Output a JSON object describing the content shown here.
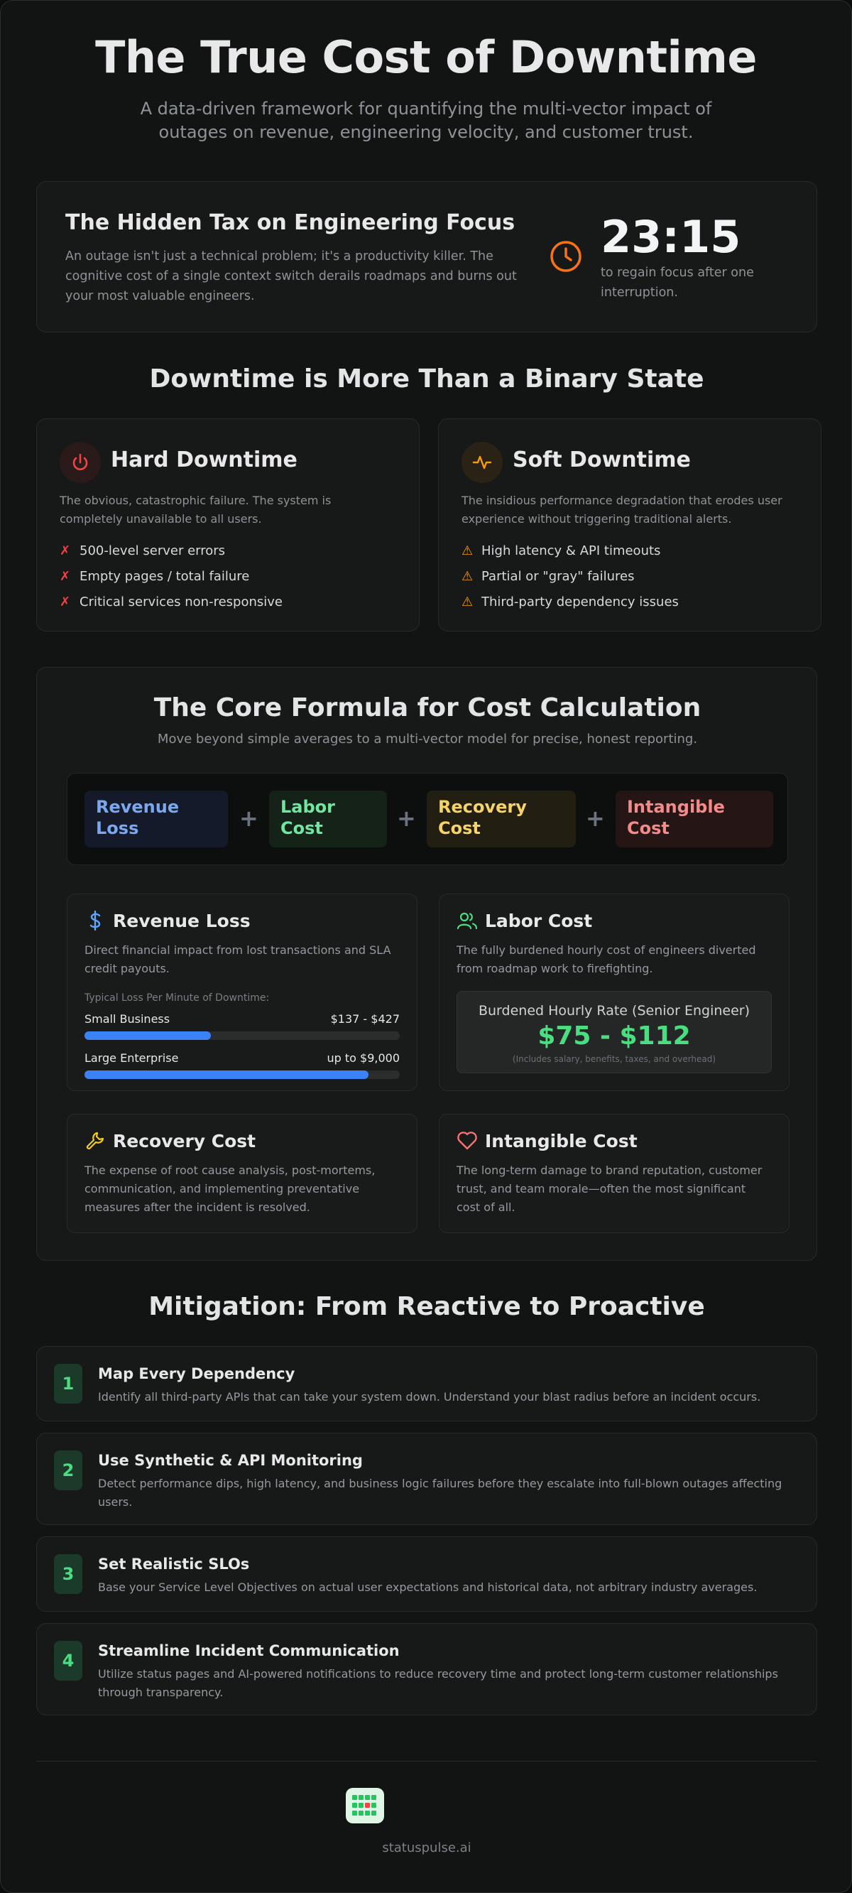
{
  "hero": {
    "title": "The True Cost of Downtime",
    "subtitle": "A data-driven framework for quantifying the multi-vector impact of outages on revenue, engineering velocity, and customer trust."
  },
  "hidden_tax": {
    "title": "The Hidden Tax on Engineering Focus",
    "description": "An outage isn't just a technical problem; it's a productivity killer. The cognitive cost of a single context switch derails roadmaps and burns out your most valuable engineers.",
    "stat_value": "23:15",
    "stat_caption": "to regain focus after one interruption.",
    "icon": "clock-icon"
  },
  "downtime_section": {
    "title": "Downtime is More Than a Binary State",
    "hard": {
      "title": "Hard Downtime",
      "icon": "power-icon",
      "description": "The obvious, catastrophic failure. The system is completely unavailable to all users.",
      "items": [
        "500-level server errors",
        "Empty pages / total failure",
        "Critical services non-responsive"
      ],
      "mark": "✗",
      "color": "#ef4444"
    },
    "soft": {
      "title": "Soft Downtime",
      "icon": "activity-icon",
      "description": "The insidious performance degradation that erodes user experience without triggering traditional alerts.",
      "items": [
        "High latency & API timeouts",
        "Partial or \"gray\" failures",
        "Third-party dependency issues"
      ],
      "mark": "⚠",
      "color": "#f59e0b"
    }
  },
  "formula": {
    "title": "The Core Formula for Cost Calculation",
    "subtitle": "Move beyond simple averages to a multi-vector model for precise, honest reporting.",
    "terms": [
      {
        "label": "Revenue Loss",
        "color": "#7aa8f0"
      },
      {
        "label": "Labor Cost",
        "color": "#6ee7a0"
      },
      {
        "label": "Recovery Cost",
        "color": "#f6d365"
      },
      {
        "label": "Intangible Cost",
        "color": "#f58a8a"
      }
    ],
    "operator": "+",
    "revenue": {
      "title": "Revenue Loss",
      "icon": "dollar-icon",
      "description": "Direct financial impact from lost transactions and SLA credit payouts.",
      "loss_label": "Typical Loss Per Minute of Downtime:",
      "rows": [
        {
          "label": "Small Business",
          "value": "$137 - $427",
          "fill": 0.4
        },
        {
          "label": "Large Enterprise",
          "value": "up to $9,000",
          "fill": 0.9
        }
      ]
    },
    "labor": {
      "title": "Labor Cost",
      "icon": "users-icon",
      "description": "The fully burdened hourly cost of engineers diverted from roadmap work to firefighting.",
      "rate_label": "Burdened Hourly Rate (Senior Engineer)",
      "rate_value": "$75 - $112",
      "rate_note": "(Includes salary, benefits, taxes, and overhead)"
    },
    "recovery": {
      "title": "Recovery Cost",
      "icon": "wrench-icon",
      "description": "The expense of root cause analysis, post-mortems, communication, and implementing preventative measures after the incident is resolved."
    },
    "intangible": {
      "title": "Intangible Cost",
      "icon": "heart-icon",
      "description": "The long-term damage to brand reputation, customer trust, and team morale—often the most significant cost of all."
    }
  },
  "mitigation": {
    "title": "Mitigation: From Reactive to Proactive",
    "steps": [
      {
        "num": "1",
        "title": "Map Every Dependency",
        "description": "Identify all third-party APIs that can take your system down. Understand your blast radius before an incident occurs."
      },
      {
        "num": "2",
        "title": "Use Synthetic & API Monitoring",
        "description": "Detect performance dips, high latency, and business logic failures before they escalate into full-blown outages affecting users."
      },
      {
        "num": "3",
        "title": "Set Realistic SLOs",
        "description": "Base your Service Level Objectives on actual user expectations and historical data, not arbitrary industry averages."
      },
      {
        "num": "4",
        "title": "Streamline Incident Communication",
        "description": "Utilize status pages and AI-powered notifications to reduce recovery time and protect long-term customer relationships through transparency."
      }
    ]
  },
  "footer": {
    "logo_icon": "statuspulse-logo-icon",
    "text": "statuspulse.ai"
  }
}
